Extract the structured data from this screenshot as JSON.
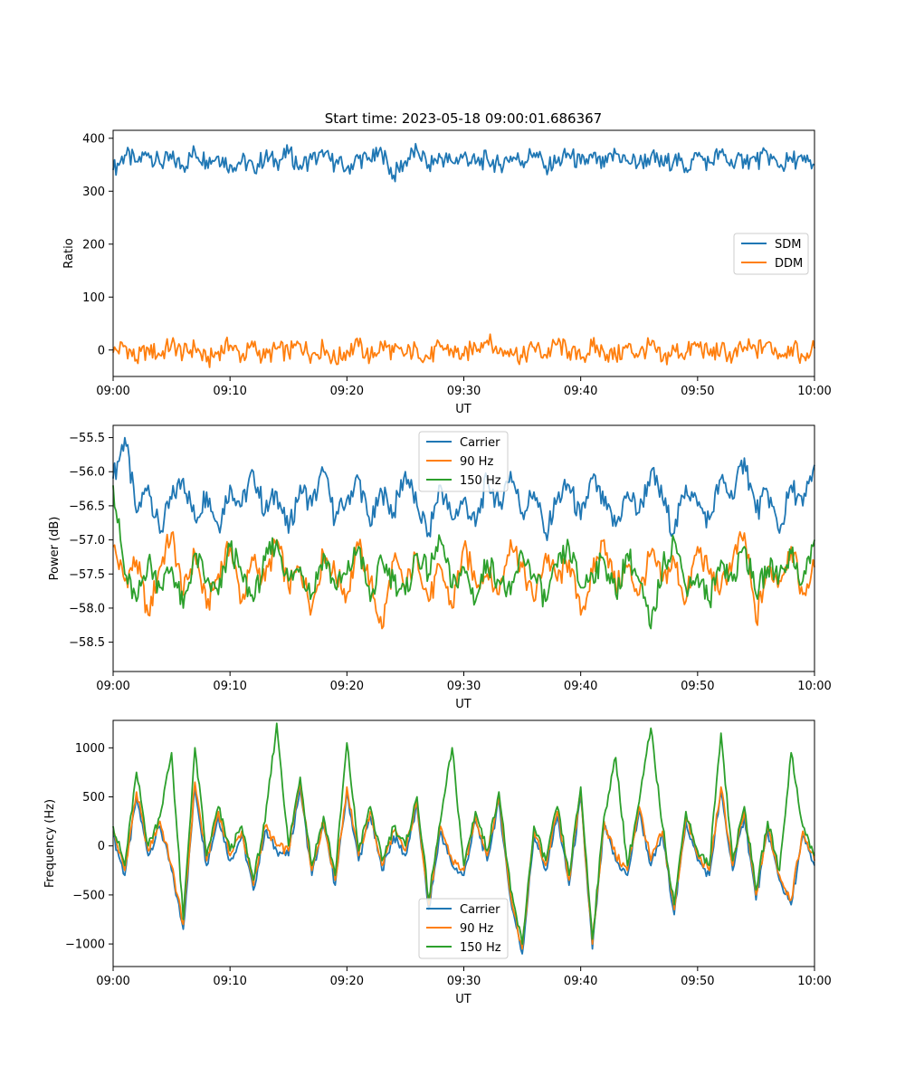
{
  "figure": {
    "title": "Start time: 2023-05-18 09:00:01.686367"
  },
  "chart_data": [
    {
      "type": "line",
      "xlabel": "UT",
      "ylabel": "Ratio",
      "xlim": [
        "09:00",
        "10:00"
      ],
      "ylim": [
        -50,
        415
      ],
      "xticks": [
        "09:00",
        "09:10",
        "09:20",
        "09:30",
        "09:40",
        "09:50",
        "10:00"
      ],
      "yticks": [
        0,
        100,
        200,
        300,
        400
      ],
      "legend": "center-right",
      "colors": {
        "SDM": "#1f77b4",
        "DDM": "#ff7f0e"
      },
      "series": [
        {
          "name": "SDM",
          "x_minutes": [
            0,
            1,
            2,
            3,
            4,
            5,
            6,
            7,
            8,
            9,
            10,
            11,
            12,
            13,
            14,
            15,
            16,
            17,
            18,
            19,
            20,
            21,
            22,
            23,
            24,
            25,
            26,
            27,
            28,
            29,
            30,
            31,
            32,
            33,
            34,
            35,
            36,
            37,
            38,
            39,
            40,
            41,
            42,
            43,
            44,
            45,
            46,
            47,
            48,
            49,
            50,
            51,
            52,
            53,
            54,
            55,
            56,
            57,
            58,
            59,
            60
          ],
          "values": [
            340,
            368,
            356,
            372,
            352,
            361,
            347,
            375,
            358,
            366,
            350,
            357,
            345,
            364,
            355,
            371,
            349,
            360,
            365,
            353,
            344,
            362,
            358,
            372,
            330,
            357,
            378,
            350,
            364,
            355,
            368,
            352,
            361,
            349,
            366,
            357,
            372,
            348,
            355,
            369,
            352,
            363,
            346,
            371,
            358,
            353,
            365,
            350,
            360,
            344,
            366,
            354,
            373,
            348,
            361,
            356,
            368,
            345,
            362,
            357,
            350
          ]
        },
        {
          "name": "DDM",
          "x_minutes": [
            0,
            1,
            2,
            3,
            4,
            5,
            6,
            7,
            8,
            9,
            10,
            11,
            12,
            13,
            14,
            15,
            16,
            17,
            18,
            19,
            20,
            21,
            22,
            23,
            24,
            25,
            26,
            27,
            28,
            29,
            30,
            31,
            32,
            33,
            34,
            35,
            36,
            37,
            38,
            39,
            40,
            41,
            42,
            43,
            44,
            45,
            46,
            47,
            48,
            49,
            50,
            51,
            52,
            53,
            54,
            55,
            56,
            57,
            58,
            59,
            60
          ],
          "values": [
            -5,
            8,
            -18,
            3,
            -10,
            12,
            -7,
            5,
            -22,
            -3,
            9,
            -12,
            6,
            -15,
            2,
            -6,
            11,
            -9,
            4,
            -19,
            -1,
            7,
            -13,
            10,
            -4,
            -8,
            3,
            -16,
            6,
            -2,
            -11,
            8,
            18,
            -6,
            2,
            -14,
            5,
            -9,
            11,
            -3,
            -17,
            7,
            -5,
            -12,
            4,
            -8,
            9,
            -20,
            1,
            -6,
            12,
            -10,
            3,
            -14,
            6,
            -2,
            14,
            -7,
            5,
            -12,
            3
          ]
        }
      ]
    },
    {
      "type": "line",
      "xlabel": "UT",
      "ylabel": "Power (dB)",
      "xlim": [
        "09:00",
        "10:00"
      ],
      "ylim": [
        -58.93,
        -55.32
      ],
      "xticks": [
        "09:00",
        "09:10",
        "09:20",
        "09:30",
        "09:40",
        "09:50",
        "10:00"
      ],
      "yticks": [
        -55.5,
        -56.0,
        -56.5,
        -57.0,
        -57.5,
        -58.0,
        -58.5
      ],
      "ytick_labels": [
        "−55.5",
        "−56.0",
        "−56.5",
        "−57.0",
        "−57.5",
        "−58.0",
        "−58.5"
      ],
      "legend": "top-center",
      "colors": {
        "Carrier": "#1f77b4",
        "90 Hz": "#ff7f0e",
        "150 Hz": "#2ca02c"
      },
      "series": [
        {
          "name": "Carrier",
          "x_minutes": [
            0,
            1,
            2,
            3,
            4,
            5,
            6,
            7,
            8,
            9,
            10,
            11,
            12,
            13,
            14,
            15,
            16,
            17,
            18,
            19,
            20,
            21,
            22,
            23,
            24,
            25,
            26,
            27,
            28,
            29,
            30,
            31,
            32,
            33,
            34,
            35,
            36,
            37,
            38,
            39,
            40,
            41,
            42,
            43,
            44,
            45,
            46,
            47,
            48,
            49,
            50,
            51,
            52,
            53,
            54,
            55,
            56,
            57,
            58,
            59,
            60
          ],
          "values": [
            -56.1,
            -55.5,
            -56.6,
            -56.2,
            -56.9,
            -56.4,
            -56.1,
            -56.7,
            -56.3,
            -56.8,
            -56.2,
            -56.5,
            -56.0,
            -56.6,
            -56.3,
            -56.9,
            -56.2,
            -56.5,
            -56.0,
            -56.7,
            -56.4,
            -56.1,
            -56.8,
            -56.3,
            -56.6,
            -56.0,
            -56.5,
            -56.9,
            -56.2,
            -56.7,
            -56.4,
            -56.8,
            -56.1,
            -56.5,
            -56.0,
            -56.6,
            -56.3,
            -56.9,
            -56.4,
            -56.2,
            -56.7,
            -56.1,
            -56.5,
            -56.8,
            -56.3,
            -56.6,
            -56.0,
            -56.4,
            -56.9,
            -56.2,
            -56.5,
            -56.7,
            -56.1,
            -56.4,
            -55.8,
            -56.6,
            -56.3,
            -56.9,
            -56.2,
            -56.5,
            -55.9
          ]
        },
        {
          "name": "90 Hz",
          "x_minutes": [
            0,
            1,
            2,
            3,
            4,
            5,
            6,
            7,
            8,
            9,
            10,
            11,
            12,
            13,
            14,
            15,
            16,
            17,
            18,
            19,
            20,
            21,
            22,
            23,
            24,
            25,
            26,
            27,
            28,
            29,
            30,
            31,
            32,
            33,
            34,
            35,
            36,
            37,
            38,
            39,
            40,
            41,
            42,
            43,
            44,
            45,
            46,
            47,
            48,
            49,
            50,
            51,
            52,
            53,
            54,
            55,
            56,
            57,
            58,
            59,
            60
          ],
          "values": [
            -57.1,
            -57.6,
            -57.3,
            -58.1,
            -57.4,
            -56.9,
            -57.8,
            -57.2,
            -58.0,
            -57.5,
            -57.1,
            -57.9,
            -57.3,
            -57.6,
            -57.0,
            -57.7,
            -57.4,
            -58.0,
            -57.2,
            -57.5,
            -57.8,
            -57.1,
            -57.6,
            -58.3,
            -57.3,
            -57.7,
            -57.2,
            -57.9,
            -57.4,
            -58.0,
            -57.1,
            -57.6,
            -57.5,
            -57.8,
            -57.0,
            -57.4,
            -57.9,
            -57.2,
            -57.6,
            -57.3,
            -58.1,
            -57.5,
            -57.0,
            -57.7,
            -57.4,
            -57.8,
            -57.2,
            -57.6,
            -57.3,
            -57.9,
            -57.1,
            -57.5,
            -57.7,
            -57.3,
            -56.9,
            -58.2,
            -57.4,
            -57.6,
            -57.1,
            -57.8,
            -57.4
          ]
        },
        {
          "name": "150 Hz",
          "x_minutes": [
            0,
            1,
            2,
            3,
            4,
            5,
            6,
            7,
            8,
            9,
            10,
            11,
            12,
            13,
            14,
            15,
            16,
            17,
            18,
            19,
            20,
            21,
            22,
            23,
            24,
            25,
            26,
            27,
            28,
            29,
            30,
            31,
            32,
            33,
            34,
            35,
            36,
            37,
            38,
            39,
            40,
            41,
            42,
            43,
            44,
            45,
            46,
            47,
            48,
            49,
            50,
            51,
            52,
            53,
            54,
            55,
            56,
            57,
            58,
            59,
            60
          ],
          "values": [
            -56.2,
            -57.5,
            -57.9,
            -57.3,
            -57.7,
            -57.4,
            -58.0,
            -57.2,
            -57.6,
            -57.8,
            -57.1,
            -57.5,
            -57.9,
            -57.3,
            -57.0,
            -57.6,
            -57.4,
            -57.8,
            -57.2,
            -57.7,
            -57.5,
            -57.1,
            -57.9,
            -57.3,
            -57.6,
            -57.8,
            -57.2,
            -57.5,
            -57.0,
            -57.7,
            -57.4,
            -57.9,
            -57.3,
            -57.6,
            -57.8,
            -57.2,
            -57.5,
            -57.9,
            -57.4,
            -57.1,
            -57.7,
            -57.5,
            -57.3,
            -57.8,
            -57.2,
            -57.6,
            -58.3,
            -57.4,
            -57.0,
            -57.7,
            -57.5,
            -57.9,
            -57.3,
            -57.6,
            -57.1,
            -57.8,
            -57.4,
            -57.5,
            -57.2,
            -57.6,
            -57.0
          ]
        }
      ]
    },
    {
      "type": "line",
      "xlabel": "UT",
      "ylabel": "Frequency (Hz)",
      "xlim": [
        "09:00",
        "10:00"
      ],
      "ylim": [
        -1230,
        1280
      ],
      "xticks": [
        "09:00",
        "09:10",
        "09:20",
        "09:30",
        "09:40",
        "09:50",
        "10:00"
      ],
      "yticks": [
        1000,
        500,
        0,
        -500,
        -1000
      ],
      "ytick_labels": [
        "1000",
        "500",
        "0",
        "−500",
        "−1000"
      ],
      "legend": "bottom-center",
      "colors": {
        "Carrier": "#1f77b4",
        "90 Hz": "#ff7f0e",
        "150 Hz": "#2ca02c"
      },
      "series": [
        {
          "name": "Carrier",
          "x_minutes": [
            0,
            1,
            2,
            3,
            4,
            5,
            6,
            7,
            8,
            9,
            10,
            11,
            12,
            13,
            14,
            15,
            16,
            17,
            18,
            19,
            20,
            21,
            22,
            23,
            24,
            25,
            26,
            27,
            28,
            29,
            30,
            31,
            32,
            33,
            34,
            35,
            36,
            37,
            38,
            39,
            40,
            41,
            42,
            43,
            44,
            45,
            46,
            47,
            48,
            49,
            50,
            51,
            52,
            53,
            54,
            55,
            56,
            57,
            58,
            59,
            60
          ],
          "values": [
            100,
            -300,
            500,
            -100,
            200,
            -250,
            -850,
            600,
            -200,
            300,
            -150,
            100,
            -450,
            150,
            -50,
            -100,
            600,
            -300,
            200,
            -400,
            550,
            -150,
            300,
            -250,
            100,
            -100,
            400,
            -650,
            150,
            -200,
            -300,
            250,
            -150,
            450,
            -550,
            -1100,
            100,
            -250,
            300,
            -400,
            500,
            -1050,
            200,
            -150,
            -300,
            350,
            -200,
            100,
            -700,
            250,
            -150,
            -300,
            550,
            -250,
            300,
            -550,
            150,
            -350,
            -600,
            100,
            -200
          ]
        },
        {
          "name": "90 Hz",
          "x_minutes": [
            0,
            1,
            2,
            3,
            4,
            5,
            6,
            7,
            8,
            9,
            10,
            11,
            12,
            13,
            14,
            15,
            16,
            17,
            18,
            19,
            20,
            21,
            22,
            23,
            24,
            25,
            26,
            27,
            28,
            29,
            30,
            31,
            32,
            33,
            34,
            35,
            36,
            37,
            38,
            39,
            40,
            41,
            42,
            43,
            44,
            45,
            46,
            47,
            48,
            49,
            50,
            51,
            52,
            53,
            54,
            55,
            56,
            57,
            58,
            59,
            60
          ],
          "values": [
            150,
            -250,
            550,
            -50,
            250,
            -200,
            -800,
            650,
            -150,
            350,
            -100,
            150,
            -400,
            200,
            0,
            -50,
            650,
            -250,
            250,
            -350,
            600,
            -100,
            350,
            -200,
            150,
            -50,
            450,
            -600,
            200,
            -150,
            -250,
            300,
            -100,
            500,
            -500,
            -1050,
            150,
            -200,
            350,
            -350,
            550,
            -1000,
            250,
            -100,
            -250,
            400,
            -150,
            150,
            -650,
            300,
            -100,
            -250,
            600,
            -200,
            350,
            -500,
            200,
            -300,
            -550,
            150,
            -150
          ]
        },
        {
          "name": "150 Hz",
          "x_minutes": [
            0,
            1,
            2,
            3,
            4,
            5,
            6,
            7,
            8,
            9,
            10,
            11,
            12,
            13,
            14,
            15,
            16,
            17,
            18,
            19,
            20,
            21,
            22,
            23,
            24,
            25,
            26,
            27,
            28,
            29,
            30,
            31,
            32,
            33,
            34,
            35,
            36,
            37,
            38,
            39,
            40,
            41,
            42,
            43,
            44,
            45,
            46,
            47,
            48,
            49,
            50,
            51,
            52,
            53,
            54,
            55,
            56,
            57,
            58,
            59,
            60
          ],
          "values": [
            200,
            -200,
            750,
            0,
            300,
            950,
            -750,
            1000,
            -100,
            400,
            -50,
            200,
            -350,
            250,
            1250,
            0,
            700,
            -200,
            300,
            -300,
            1050,
            -50,
            400,
            -150,
            200,
            0,
            500,
            -550,
            250,
            1000,
            -200,
            350,
            -50,
            550,
            -450,
            -1000,
            200,
            -150,
            400,
            -300,
            600,
            -950,
            300,
            900,
            -200,
            450,
            1200,
            200,
            -600,
            350,
            -50,
            -200,
            1150,
            -150,
            400,
            -450,
            250,
            -250,
            950,
            200,
            -100
          ]
        }
      ]
    }
  ]
}
